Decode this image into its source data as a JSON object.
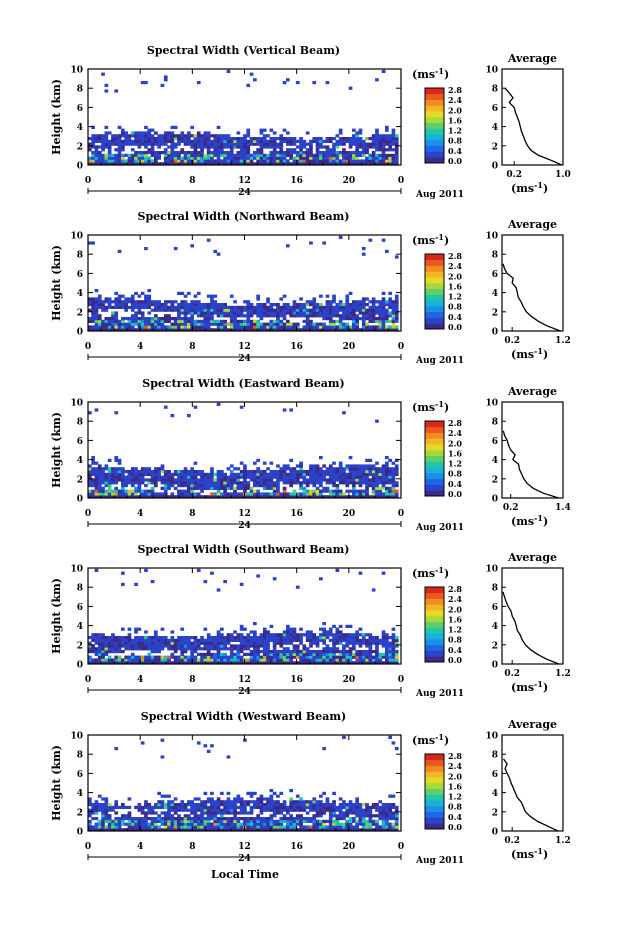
{
  "figure": {
    "xlabel_bottom": "Local Time",
    "date_label": "Aug 2011",
    "day_label": "24",
    "unit_label": "(ms",
    "unit_sup": "-1",
    "unit_close": ")"
  },
  "colorbar": {
    "ticks": [
      "0.0",
      "0.4",
      "0.8",
      "1.2",
      "1.6",
      "2.0",
      "2.4",
      "2.8"
    ],
    "colors": [
      "#3b2a8a",
      "#2b43c8",
      "#1f66e6",
      "#1a8fe8",
      "#19b2d8",
      "#22c7a6",
      "#5fd067",
      "#a8d93a",
      "#e6d92a",
      "#f5b623",
      "#f38a22",
      "#ea5a20",
      "#d8281c"
    ]
  },
  "chart_data": [
    {
      "type": "heatmap",
      "title": "Spectral Width (Vertical Beam)",
      "xlabel": "",
      "ylabel": "Height (km)",
      "xlim": [
        0,
        24
      ],
      "ylim": [
        0,
        10
      ],
      "xticks": [
        "0",
        "4",
        "8",
        "12",
        "16",
        "20",
        "0"
      ],
      "yticks": [
        "0",
        "2",
        "4",
        "6",
        "8",
        "10"
      ],
      "color_scale": "Spectral width (ms-1), 0.0 to 2.8",
      "profile": {
        "title": "Average",
        "xlabel": "(ms",
        "xlim": [
          0.0,
          1.0
        ],
        "ylim": [
          0,
          10
        ],
        "xticks": [
          "0.2",
          "1.0"
        ],
        "height_km": [
          0,
          0.5,
          1,
          1.5,
          2,
          2.5,
          3,
          3.5,
          4,
          4.5,
          5,
          5.5,
          6,
          6.5,
          7,
          7.5,
          8
        ],
        "width_ms": [
          0.98,
          0.8,
          0.6,
          0.48,
          0.42,
          0.38,
          0.35,
          0.32,
          0.3,
          0.28,
          0.25,
          0.22,
          0.2,
          0.12,
          0.18,
          0.12,
          0.05
        ]
      }
    },
    {
      "type": "heatmap",
      "title": "Spectral Width (Northward Beam)",
      "xlabel": "",
      "ylabel": "Height (km)",
      "xlim": [
        0,
        24
      ],
      "ylim": [
        0,
        10
      ],
      "xticks": [
        "0",
        "4",
        "8",
        "12",
        "16",
        "20",
        "0"
      ],
      "yticks": [
        "0",
        "2",
        "4",
        "6",
        "8",
        "10"
      ],
      "color_scale": "Spectral width (ms-1), 0.0 to 2.8",
      "profile": {
        "title": "Average",
        "xlabel": "(ms",
        "xlim": [
          0.0,
          1.2
        ],
        "ylim": [
          0,
          10
        ],
        "xticks": [
          "0.2",
          "1.2"
        ],
        "height_km": [
          0,
          0.5,
          1,
          1.5,
          2,
          2.5,
          3,
          3.5,
          4,
          4.5,
          5,
          5.5,
          6,
          6.5,
          7
        ],
        "width_ms": [
          1.15,
          0.9,
          0.72,
          0.58,
          0.48,
          0.42,
          0.38,
          0.32,
          0.3,
          0.28,
          0.2,
          0.22,
          0.1,
          0.05,
          0.02
        ]
      }
    },
    {
      "type": "heatmap",
      "title": "Spectral Width (Eastward Beam)",
      "xlabel": "",
      "ylabel": "Height (km)",
      "xlim": [
        0,
        24
      ],
      "ylim": [
        0,
        10
      ],
      "xticks": [
        "0",
        "4",
        "8",
        "12",
        "16",
        "20",
        "0"
      ],
      "yticks": [
        "0",
        "2",
        "4",
        "6",
        "8",
        "10"
      ],
      "color_scale": "Spectral width (ms-1), 0.0 to 2.8",
      "profile": {
        "title": "Average",
        "xlabel": "(ms",
        "xlim": [
          0.0,
          1.4
        ],
        "ylim": [
          0,
          10
        ],
        "xticks": [
          "0.2",
          "1.4"
        ],
        "height_km": [
          0,
          0.5,
          1,
          1.5,
          2,
          2.5,
          3,
          3.5,
          4,
          4.5,
          5,
          5.5,
          6,
          6.5,
          7
        ],
        "width_ms": [
          1.3,
          0.95,
          0.72,
          0.58,
          0.5,
          0.45,
          0.4,
          0.38,
          0.25,
          0.3,
          0.2,
          0.15,
          0.12,
          0.06,
          0.03
        ]
      }
    },
    {
      "type": "heatmap",
      "title": "Spectral Width (Southward Beam)",
      "xlabel": "",
      "ylabel": "Height (km)",
      "xlim": [
        0,
        24
      ],
      "ylim": [
        0,
        10
      ],
      "xticks": [
        "0",
        "4",
        "8",
        "12",
        "16",
        "20",
        "0"
      ],
      "yticks": [
        "0",
        "2",
        "4",
        "6",
        "8",
        "10"
      ],
      "color_scale": "Spectral width (ms-1), 0.0 to 2.8",
      "profile": {
        "title": "Average",
        "xlabel": "(ms",
        "xlim": [
          0.0,
          1.2
        ],
        "ylim": [
          0,
          10
        ],
        "xticks": [
          "0.2",
          "1.2"
        ],
        "height_km": [
          0,
          0.5,
          1,
          1.5,
          2,
          2.5,
          3,
          3.5,
          4,
          4.5,
          5,
          5.5,
          6,
          6.5,
          7,
          7.5
        ],
        "width_ms": [
          1.12,
          0.88,
          0.7,
          0.56,
          0.46,
          0.4,
          0.36,
          0.3,
          0.28,
          0.25,
          0.2,
          0.18,
          0.12,
          0.08,
          0.05,
          0.02
        ]
      }
    },
    {
      "type": "heatmap",
      "title": "Spectral Width (Westward Beam)",
      "xlabel": "Local Time",
      "ylabel": "Height (km)",
      "xlim": [
        0,
        24
      ],
      "ylim": [
        0,
        10
      ],
      "xticks": [
        "0",
        "4",
        "8",
        "12",
        "16",
        "20",
        "0"
      ],
      "yticks": [
        "0",
        "2",
        "4",
        "6",
        "8",
        "10"
      ],
      "color_scale": "Spectral width (ms-1), 0.0 to 2.8",
      "profile": {
        "title": "Average",
        "xlabel": "(ms",
        "xlim": [
          0.0,
          1.2
        ],
        "ylim": [
          0,
          10
        ],
        "xticks": [
          "0.2",
          "1.2"
        ],
        "height_km": [
          0,
          0.5,
          1,
          1.5,
          2,
          2.5,
          3,
          3.5,
          4,
          4.5,
          5,
          5.5,
          6,
          6.5,
          7,
          7.5
        ],
        "width_ms": [
          1.1,
          0.9,
          0.7,
          0.56,
          0.46,
          0.42,
          0.38,
          0.3,
          0.26,
          0.22,
          0.18,
          0.15,
          0.1,
          0.06,
          0.1,
          0.03
        ]
      }
    }
  ]
}
